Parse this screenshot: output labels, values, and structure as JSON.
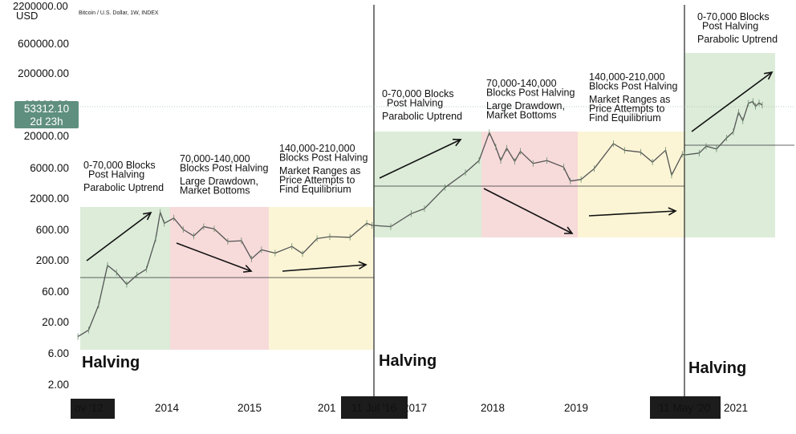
{
  "header": {
    "title": "Bitcoin / U.S. Dollar, 1W, INDEX",
    "axis_unit": "USD",
    "top_label": "2200000.00"
  },
  "price_badge": {
    "price": "53312.10",
    "countdown": "2d 23h",
    "color": "#5f8f7e"
  },
  "chart_data": {
    "type": "line",
    "title": "Bitcoin / U.S. Dollar, 1W, INDEX",
    "ylabel": "USD",
    "yscale": "log",
    "y_ticks": [
      "600000.00",
      "200000.00",
      "60000.00",
      "20000.00",
      "6000.00",
      "2000.00",
      "600.00",
      "200.00",
      "60.00",
      "20.00",
      "6.00",
      "2.00"
    ],
    "x_ticks": [
      "2014",
      "2015",
      "2017",
      "2018",
      "2019",
      "2021"
    ],
    "x_ticks_partial": [
      "ov '12",
      "201"
    ],
    "highlighted_dates": [
      "11 Jul '16",
      "11 May '20"
    ],
    "series": [
      {
        "values": [
          [
            "2012-11-28",
            11
          ],
          [
            "2013-01-15",
            14
          ],
          [
            "2013-03-01",
            35
          ],
          [
            "2013-04-10",
            150
          ],
          [
            "2013-05-20",
            115
          ],
          [
            "2013-07-05",
            75
          ],
          [
            "2013-08-20",
            105
          ],
          [
            "2013-10-01",
            130
          ],
          [
            "2013-11-12",
            400
          ],
          [
            "2013-12-02",
            1050
          ],
          [
            "2013-12-20",
            700
          ],
          [
            "2014-02-01",
            850
          ],
          [
            "2014-03-15",
            560
          ],
          [
            "2014-05-01",
            440
          ],
          [
            "2014-06-15",
            620
          ],
          [
            "2014-08-01",
            570
          ],
          [
            "2014-10-01",
            360
          ],
          [
            "2014-12-01",
            370
          ],
          [
            "2015-01-15",
            190
          ],
          [
            "2015-03-01",
            265
          ],
          [
            "2015-05-01",
            235
          ],
          [
            "2015-07-15",
            300
          ],
          [
            "2015-09-01",
            230
          ],
          [
            "2015-11-05",
            400
          ],
          [
            "2016-01-01",
            430
          ],
          [
            "2016-04-01",
            420
          ],
          [
            "2016-06-15",
            700
          ],
          [
            "2016-07-09",
            650
          ],
          [
            "2016-10-01",
            620
          ],
          [
            "2017-01-01",
            1000
          ],
          [
            "2017-03-01",
            1200
          ],
          [
            "2017-06-01",
            2600
          ],
          [
            "2017-09-01",
            4500
          ],
          [
            "2017-11-01",
            7000
          ],
          [
            "2017-12-17",
            19500
          ],
          [
            "2018-01-15",
            11500
          ],
          [
            "2018-02-06",
            7000
          ],
          [
            "2018-03-05",
            11000
          ],
          [
            "2018-04-10",
            6800
          ],
          [
            "2018-05-05",
            9800
          ],
          [
            "2018-07-01",
            6300
          ],
          [
            "2018-09-01",
            7000
          ],
          [
            "2018-11-15",
            5500
          ],
          [
            "2018-12-15",
            3300
          ],
          [
            "2019-02-01",
            3500
          ],
          [
            "2019-04-01",
            5200
          ],
          [
            "2019-06-26",
            13000
          ],
          [
            "2019-08-15",
            10200
          ],
          [
            "2019-10-26",
            9500
          ],
          [
            "2019-12-18",
            6600
          ],
          [
            "2020-02-15",
            10200
          ],
          [
            "2020-03-13",
            4100
          ],
          [
            "2020-04-30",
            8800
          ],
          [
            "2020-05-11",
            8600
          ],
          [
            "2020-07-15",
            9200
          ],
          [
            "2020-08-15",
            11800
          ],
          [
            "2020-10-01",
            10700
          ],
          [
            "2020-11-15",
            16000
          ],
          [
            "2020-12-15",
            20000
          ],
          [
            "2021-01-08",
            41000
          ],
          [
            "2021-01-27",
            30000
          ],
          [
            "2021-02-21",
            57000
          ],
          [
            "2021-03-13",
            61000
          ],
          [
            "2021-03-25",
            51000
          ],
          [
            "2021-04-10",
            58000
          ],
          [
            "2021-04-24",
            53312
          ]
        ]
      }
    ],
    "halving_label": "Halving",
    "annotations": [
      {
        "lines": [
          "0-70,000 Blocks",
          "Post Halving",
          "",
          "Parabolic Uptrend"
        ]
      },
      {
        "lines": [
          "70,000-140,000",
          "Blocks Post Halving",
          "",
          "Large Drawdown,",
          "Market Bottoms"
        ]
      },
      {
        "lines": [
          "140,000-210,000",
          "Blocks Post Halving",
          "",
          "Market Ranges as",
          "Price Attempts to",
          "Find Equilibrium"
        ]
      },
      {
        "lines": [
          "0-70,000 Blocks",
          "Post Halving",
          "",
          "Parabolic Uptrend"
        ]
      },
      {
        "lines": [
          "70,000-140,000",
          "Blocks Post Halving",
          "",
          "Large Drawdown,",
          "Market Bottoms"
        ]
      },
      {
        "lines": [
          "140,000-210,000",
          "Blocks Post Halving",
          "",
          "Market Ranges as",
          "Price Attempts to",
          "Find Equilibrium"
        ]
      },
      {
        "lines": [
          "0-70,000 Blocks",
          "Post Halving",
          "",
          "Parabolic Uptrend"
        ]
      }
    ],
    "phase_colors": {
      "uptrend": "#dcecd9",
      "drawdown": "#f7dada",
      "ranging": "#fbf5d6"
    },
    "line_color": "#555555",
    "grid": false
  }
}
